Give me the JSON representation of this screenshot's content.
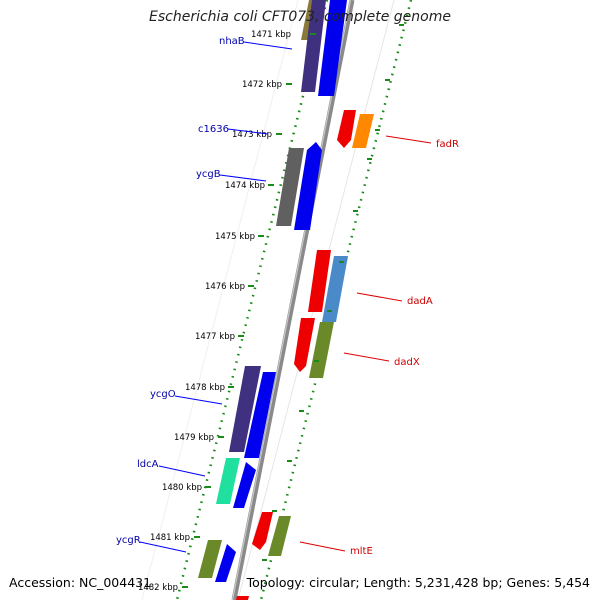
{
  "title": "Escherichia coli CFT073, complete genome",
  "footer": {
    "accession": "Accession: NC_004431",
    "summary": "Topology: circular; Length: 5,231,428 bp; Genes: 5,454"
  },
  "ticks": [
    "1471 kbp",
    "1472 kbp",
    "1473 kbp",
    "1474 kbp",
    "1475 kbp",
    "1476 kbp",
    "1477 kbp",
    "1478 kbp",
    "1479 kbp",
    "1480 kbp",
    "1481 kbp",
    "1482 kbp"
  ],
  "gene_labels": [
    {
      "name": "nhaB",
      "color": "#0000aa"
    },
    {
      "name": "c1636",
      "color": "#0000aa"
    },
    {
      "name": "ycgB",
      "color": "#0000aa"
    },
    {
      "name": "ycgO",
      "color": "#0000aa"
    },
    {
      "name": "ldcA",
      "color": "#0000aa"
    },
    {
      "name": "ycgR",
      "color": "#0000aa"
    },
    {
      "name": "fadR",
      "color": "#cc0000"
    },
    {
      "name": "dadA",
      "color": "#cc0000"
    },
    {
      "name": "dadX",
      "color": "#cc0000"
    },
    {
      "name": "mltE",
      "color": "#cc0000"
    }
  ],
  "colors": {
    "axis": "#8a8a8a",
    "ticks": "#1a8a1a",
    "label_line_blue": "#0000ff",
    "label_line_red": "#dd0000"
  }
}
